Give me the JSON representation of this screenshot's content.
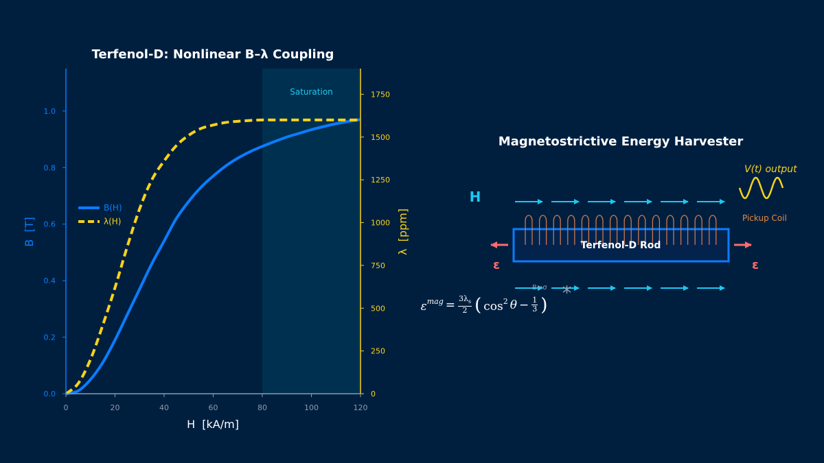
{
  "chart_data": [
    {
      "type": "line",
      "title": "Terfenol-D: Nonlinear B–λ Coupling",
      "xlabel": "H  [kA/m]",
      "ylabel_left": "B  [T]",
      "ylabel_right": "λ  [ppm]",
      "xlim": [
        0,
        120
      ],
      "ylim_left": [
        0,
        1.15
      ],
      "ylim_right": [
        0,
        1900
      ],
      "x_ticks": [
        "0",
        "20",
        "40",
        "60",
        "80",
        "100",
        "120"
      ],
      "y_left_ticks": [
        "0.0",
        "0.2",
        "0.4",
        "0.6",
        "0.8",
        "1.0"
      ],
      "y_right_ticks": [
        "0",
        "250",
        "500",
        "750",
        "1000",
        "1250",
        "1500",
        "1750"
      ],
      "grid": false,
      "legend_position": "center-left",
      "x": [
        0,
        5,
        10,
        15,
        20,
        25,
        30,
        35,
        40,
        45,
        50,
        55,
        60,
        65,
        70,
        75,
        80,
        85,
        90,
        95,
        100,
        105,
        110,
        115,
        120
      ],
      "series": [
        {
          "name": "B(H)",
          "axis": "left",
          "style": "solid",
          "color": "#0a7cff",
          "values": [
            0.0,
            0.01,
            0.05,
            0.11,
            0.19,
            0.28,
            0.37,
            0.46,
            0.54,
            0.62,
            0.68,
            0.73,
            0.77,
            0.805,
            0.833,
            0.856,
            0.875,
            0.892,
            0.908,
            0.921,
            0.934,
            0.945,
            0.955,
            0.963,
            0.97
          ]
        },
        {
          "name": "λ(H)",
          "axis": "right",
          "style": "dashed",
          "color": "#f7d31a",
          "values": [
            0,
            60,
            200,
            400,
            620,
            860,
            1080,
            1250,
            1360,
            1450,
            1510,
            1550,
            1570,
            1585,
            1592,
            1597,
            1600,
            1600,
            1600,
            1600,
            1600,
            1600,
            1600,
            1600,
            1600
          ]
        }
      ],
      "shaded_region": {
        "label": "Saturation",
        "x_start": 80,
        "x_end": 120
      }
    }
  ],
  "diagram": {
    "title": "Magnetostrictive Energy Harvester",
    "field_label": "H",
    "rod_label": "Terfenol-D Rod",
    "strain_left": "ε",
    "strain_right": "ε",
    "output_label": "V(t) output",
    "coil_label": "Pickup Coil",
    "coupling_label": "B↔σ",
    "equation": {
      "lhs_symbol": "ε",
      "lhs_superscript": "mag",
      "equals": "=",
      "frac1_num": "3λ",
      "frac1_num_sub": "s",
      "frac1_den": "2",
      "cos": "cos",
      "cos_power": "2",
      "theta": "θ",
      "minus": "−",
      "frac2_num": "1",
      "frac2_den": "3"
    }
  },
  "colors": {
    "background": "#001f3f",
    "b_curve": "#0a7cff",
    "lambda_curve": "#f7d31a",
    "field_arrows": "#1ec8f0",
    "strain": "#ff6b6b",
    "coil": "#c87850",
    "rod_border": "#0a7cff",
    "rod_fill": "#03234d",
    "saturation": "#00304f"
  }
}
